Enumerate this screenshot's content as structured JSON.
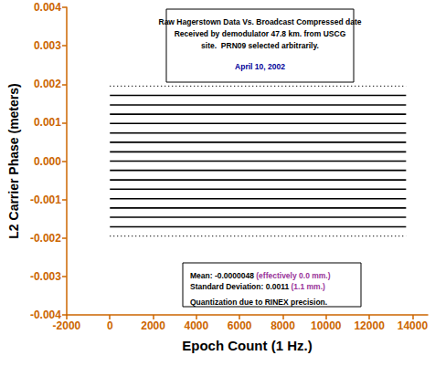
{
  "chart_data": {
    "type": "line",
    "x_label": "Epoch Count (1 Hz.)",
    "y_label": "L2 Carrier Phase (meters)",
    "x": [
      0,
      13700
    ],
    "series": [
      {
        "values": [
          0.00195,
          0.00195
        ],
        "color": "#000000",
        "line_style": "dotted"
      },
      {
        "values": [
          0.00171,
          0.00171
        ],
        "color": "#000000",
        "line_style": "solid"
      },
      {
        "values": [
          0.00146,
          0.00146
        ],
        "color": "#000000",
        "line_style": "solid"
      },
      {
        "values": [
          0.00122,
          0.00122
        ],
        "color": "#000000",
        "line_style": "solid"
      },
      {
        "values": [
          0.00098,
          0.00098
        ],
        "color": "#000000",
        "line_style": "solid"
      },
      {
        "values": [
          0.00073,
          0.00073
        ],
        "color": "#000000",
        "line_style": "solid"
      },
      {
        "values": [
          0.00049,
          0.00049
        ],
        "color": "#000000",
        "line_style": "solid"
      },
      {
        "values": [
          0.00024,
          0.00024
        ],
        "color": "#000000",
        "line_style": "solid"
      },
      {
        "values": [
          0,
          0
        ],
        "color": "#000000",
        "line_style": "solid"
      },
      {
        "values": [
          -0.00024,
          -0.00024
        ],
        "color": "#000000",
        "line_style": "solid"
      },
      {
        "values": [
          -0.00049,
          -0.00049
        ],
        "color": "#000000",
        "line_style": "solid"
      },
      {
        "values": [
          -0.00073,
          -0.00073
        ],
        "color": "#000000",
        "line_style": "solid"
      },
      {
        "values": [
          -0.00098,
          -0.00098
        ],
        "color": "#000000",
        "line_style": "solid"
      },
      {
        "values": [
          -0.00122,
          -0.00122
        ],
        "color": "#000000",
        "line_style": "solid"
      },
      {
        "values": [
          -0.00146,
          -0.00146
        ],
        "color": "#000000",
        "line_style": "solid"
      },
      {
        "values": [
          -0.00171,
          -0.00171
        ],
        "color": "#000000",
        "line_style": "solid"
      },
      {
        "values": [
          -0.00195,
          -0.00195
        ],
        "color": "#000000",
        "line_style": "dotted"
      }
    ],
    "xlim": [
      -2000,
      14700
    ],
    "xticks": [
      -2000,
      0,
      2000,
      4000,
      6000,
      8000,
      10000,
      12000,
      14000
    ],
    "ylim": [
      -0.004,
      0.004
    ],
    "yticks": [
      -0.004,
      -0.003,
      -0.002,
      -0.001,
      {
        "value": 0,
        "label": "0.000"
      },
      0.001,
      0.002,
      0.003,
      0.004
    ],
    "grid": false,
    "annotations": [
      {
        "lines": [
          [
            {
              "text": "Raw Hagerstown Data Vs. Broadcast Compressed date",
              "color": "#000000"
            }
          ],
          [
            {
              "text": "Received by demodulator 47.8 km. from USCG",
              "color": "#000000"
            }
          ],
          [
            {
              "text": "site.  PRN09 selected arbitrarily.",
              "color": "#000000"
            }
          ],
          [
            {
              "text": "April 10, 2002",
              "color": "#000099"
            }
          ]
        ]
      },
      {
        "lines": [
          [
            {
              "text": "Mean: -0.0000048 ",
              "color": "#000000"
            },
            {
              "text": "(effectively 0.0 mm.)",
              "color": "#993399"
            }
          ],
          [
            {
              "text": "Standard Deviation: 0.0011 ",
              "color": "#000000"
            },
            {
              "text": "(1.1 mm.)",
              "color": "#993399"
            }
          ],
          [
            {
              "text": "Quantization due to RINEX precision.",
              "color": "#000000"
            }
          ]
        ]
      }
    ]
  }
}
